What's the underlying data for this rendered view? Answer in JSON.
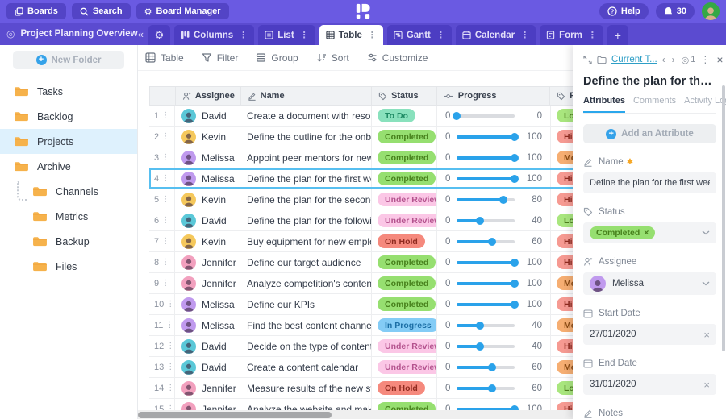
{
  "topbar": {
    "boards": "Boards",
    "search": "Search",
    "board_manager": "Board Manager",
    "help": "Help",
    "notification_count": "30"
  },
  "tabbar": {
    "board_title": "Project Planning Overview",
    "collapse": "«",
    "tabs": [
      {
        "label": "Columns",
        "active": false
      },
      {
        "label": "List",
        "active": false
      },
      {
        "label": "Table",
        "active": true
      },
      {
        "label": "Gantt",
        "active": false
      },
      {
        "label": "Calendar",
        "active": false
      },
      {
        "label": "Form",
        "active": false
      }
    ],
    "add_tab": "+"
  },
  "sidebar": {
    "new_folder": "New Folder",
    "folders": [
      {
        "label": "Tasks"
      },
      {
        "label": "Backlog"
      },
      {
        "label": "Projects",
        "selected": true
      },
      {
        "label": "Archive"
      },
      {
        "label": "Channels",
        "sub": true
      },
      {
        "label": "Metrics",
        "sub": true
      },
      {
        "label": "Backup",
        "sub": true
      },
      {
        "label": "Files",
        "sub": true
      }
    ]
  },
  "toolbar": {
    "items": [
      "Table",
      "Filter",
      "Group",
      "Sort",
      "Customize"
    ]
  },
  "table": {
    "columns": [
      "Assignee",
      "Name",
      "Status",
      "Progress",
      "Priority"
    ],
    "progress_min": "0",
    "selected_row": 4,
    "rows": [
      {
        "num": "1",
        "assignee": "David",
        "name": "Create a document with resources",
        "status": "To Do",
        "progress": 0,
        "priority": "Low"
      },
      {
        "num": "2",
        "assignee": "Kevin",
        "name": "Define the outline for the onboard",
        "status": "Completed",
        "progress": 100,
        "priority": "High"
      },
      {
        "num": "3",
        "assignee": "Melissa",
        "name": "Appoint peer mentors for new em",
        "status": "Completed",
        "progress": 100,
        "priority": "Medium"
      },
      {
        "num": "4",
        "assignee": "Melissa",
        "name": "Define the plan for the first week",
        "status": "Completed",
        "progress": 100,
        "priority": "High"
      },
      {
        "num": "5",
        "assignee": "Kevin",
        "name": "Define the plan for the second we",
        "status": "Under Review",
        "progress": 80,
        "priority": "High"
      },
      {
        "num": "6",
        "assignee": "David",
        "name": "Define the plan for the following",
        "status": "Under Review",
        "progress": 40,
        "priority": "Low"
      },
      {
        "num": "7",
        "assignee": "Kevin",
        "name": "Buy equipment for new employee",
        "status": "On Hold",
        "progress": 60,
        "priority": "High"
      },
      {
        "num": "8",
        "assignee": "Jennifer",
        "name": "Define our target audience",
        "status": "Completed",
        "progress": 100,
        "priority": "High"
      },
      {
        "num": "9",
        "assignee": "Jennifer",
        "name": "Analyze competition's content pl",
        "status": "Completed",
        "progress": 100,
        "priority": "Medium"
      },
      {
        "num": "10",
        "assignee": "Melissa",
        "name": "Define our KPIs",
        "status": "Completed",
        "progress": 100,
        "priority": "High"
      },
      {
        "num": "11",
        "assignee": "Melissa",
        "name": "Find the best content channels",
        "status": "In Progress",
        "progress": 40,
        "priority": "Medium"
      },
      {
        "num": "12",
        "assignee": "David",
        "name": "Decide on the type of content to",
        "status": "Under Review",
        "progress": 40,
        "priority": "High"
      },
      {
        "num": "13",
        "assignee": "David",
        "name": "Create a content calendar",
        "status": "Under Review",
        "progress": 60,
        "priority": "Medium"
      },
      {
        "num": "14",
        "assignee": "Jennifer",
        "name": "Measure results of the new strat",
        "status": "On Hold",
        "progress": 60,
        "priority": "Low"
      },
      {
        "num": "15",
        "assignee": "Jennifer",
        "name": "Analyze the website and make a",
        "status": "Completed",
        "progress": 100,
        "priority": "High"
      }
    ]
  },
  "panel": {
    "breadcrumb": "Current T...",
    "watch_count": "1",
    "title": "Define the plan for the first week",
    "tabs": [
      "Attributes",
      "Comments",
      "Activity Log"
    ],
    "add_attribute": "Add an Attribute",
    "fields": {
      "name": {
        "label": "Name",
        "value": "Define the plan for the first week",
        "required": true
      },
      "status": {
        "label": "Status",
        "value": "Completed"
      },
      "assignee": {
        "label": "Assignee",
        "value": "Melissa"
      },
      "start_date": {
        "label": "Start Date",
        "value": "27/01/2020"
      },
      "end_date": {
        "label": "End Date",
        "value": "31/01/2020"
      },
      "notes": {
        "label": "Notes"
      }
    }
  },
  "colors": {
    "accent": "#2AA2EA",
    "topbar": "#6A5AE2",
    "tabbar": "#5B4BD0",
    "status": {
      "To Do": {
        "bg": "#89E1BD",
        "fg": "#1E8A64"
      },
      "Completed": {
        "bg": "#96DF70",
        "fg": "#47801C"
      },
      "Under Review": {
        "bg": "#FBC7E6",
        "fg": "#B4538E"
      },
      "On Hold": {
        "bg": "#F5897D",
        "fg": "#8F2A1F"
      },
      "In Progress": {
        "bg": "#84CCF6",
        "fg": "#1C6FA6"
      }
    },
    "priority": {
      "Low": {
        "bg": "#A9E67E",
        "fg": "#4E7F1D"
      },
      "High": {
        "bg": "#F69A92",
        "fg": "#8F2A1F"
      },
      "Medium": {
        "bg": "#F6AE72",
        "fg": "#8A4A12"
      }
    },
    "avatars": {
      "David": "#5BC8D8",
      "Kevin": "#F5C85C",
      "Melissa": "#C09AEE",
      "Jennifer": "#F2A0BE"
    }
  }
}
